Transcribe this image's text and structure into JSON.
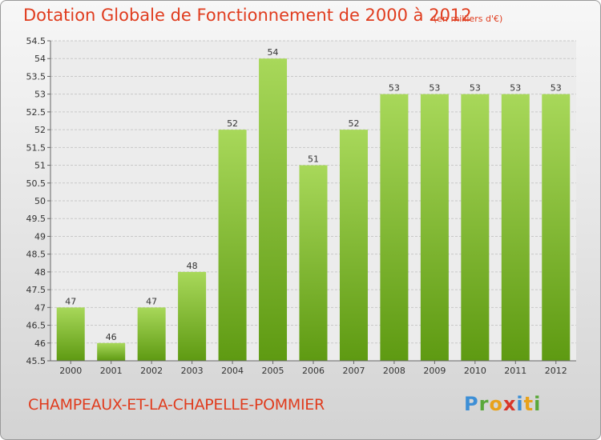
{
  "header": {
    "title": "Dotation Globale de Fonctionnement de 2000 à 2012",
    "subtitle": "(en milliers d'€)"
  },
  "footer": {
    "commune": "CHAMPEAUX-ET-LA-CHAPELLE-POMMIER",
    "logo_letters": [
      "P",
      "r",
      "o",
      "x",
      "i",
      "t",
      "i"
    ]
  },
  "colors": {
    "title": "#e03c1e",
    "bar_top": "#a8d85a",
    "bar_bottom": "#5e9a12"
  },
  "chart_data": {
    "type": "bar",
    "title": "Dotation Globale de Fonctionnement de 2000 à 2012",
    "subtitle": "(en milliers d'€)",
    "xlabel": "",
    "ylabel": "",
    "categories": [
      "2000",
      "2001",
      "2002",
      "2003",
      "2004",
      "2005",
      "2006",
      "2007",
      "2008",
      "2009",
      "2010",
      "2011",
      "2012"
    ],
    "values": [
      47,
      46,
      47,
      48,
      52,
      54,
      51,
      52,
      53,
      53,
      53,
      53,
      53
    ],
    "value_labels": [
      "47",
      "46",
      "47",
      "48",
      "52",
      "54",
      "51",
      "52",
      "53",
      "53",
      "53",
      "53",
      "53"
    ],
    "ylim": [
      45.5,
      54.5
    ],
    "yticks": [
      45.5,
      46,
      46.5,
      47,
      47.5,
      48,
      48.5,
      49,
      49.5,
      50,
      50.5,
      51,
      51.5,
      52,
      52.5,
      53,
      53.5,
      54,
      54.5
    ],
    "ytick_labels": [
      "45.5",
      "46",
      "46.5",
      "47",
      "47.5",
      "48",
      "48.5",
      "49",
      "49.5",
      "50",
      "50.5",
      "51",
      "51.5",
      "52",
      "52.5",
      "53",
      "53.5",
      "54",
      "54.5"
    ],
    "grid": true
  }
}
